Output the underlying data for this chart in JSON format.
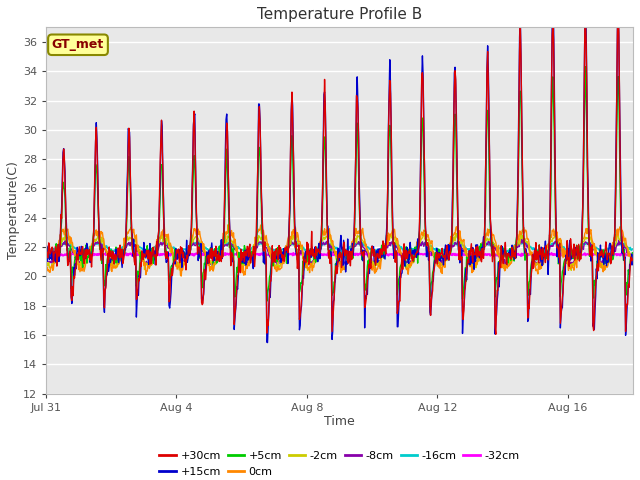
{
  "title": "Temperature Profile B",
  "xlabel": "Time",
  "ylabel": "Temperature(C)",
  "ylim": [
    12,
    37
  ],
  "yticks": [
    12,
    14,
    16,
    18,
    20,
    22,
    24,
    26,
    28,
    30,
    32,
    34,
    36
  ],
  "plot_bg": "#e8e8e8",
  "fig_bg": "#ffffff",
  "series": [
    {
      "label": "+30cm",
      "color": "#dd0000",
      "lw": 1.0
    },
    {
      "label": "+15cm",
      "color": "#0000cc",
      "lw": 1.0
    },
    {
      "label": "+5cm",
      "color": "#00cc00",
      "lw": 1.0
    },
    {
      "label": "0cm",
      "color": "#ff8800",
      "lw": 1.0
    },
    {
      "label": "-2cm",
      "color": "#cccc00",
      "lw": 1.0
    },
    {
      "label": "-8cm",
      "color": "#8800aa",
      "lw": 1.0
    },
    {
      "label": "-16cm",
      "color": "#00cccc",
      "lw": 1.2
    },
    {
      "label": "-32cm",
      "color": "#ff00ff",
      "lw": 1.5
    }
  ],
  "xtick_positions": [
    0,
    4,
    8,
    12,
    16
  ],
  "xtick_labels": [
    "Jul 31",
    "Aug 4",
    "Aug 8",
    "Aug 12",
    "Aug 16"
  ],
  "xlim": [
    0,
    18
  ],
  "gt_met_label": "GT_met",
  "gt_met_bg": "#ffff99",
  "gt_met_border": "#888800",
  "gt_met_color": "#880000"
}
